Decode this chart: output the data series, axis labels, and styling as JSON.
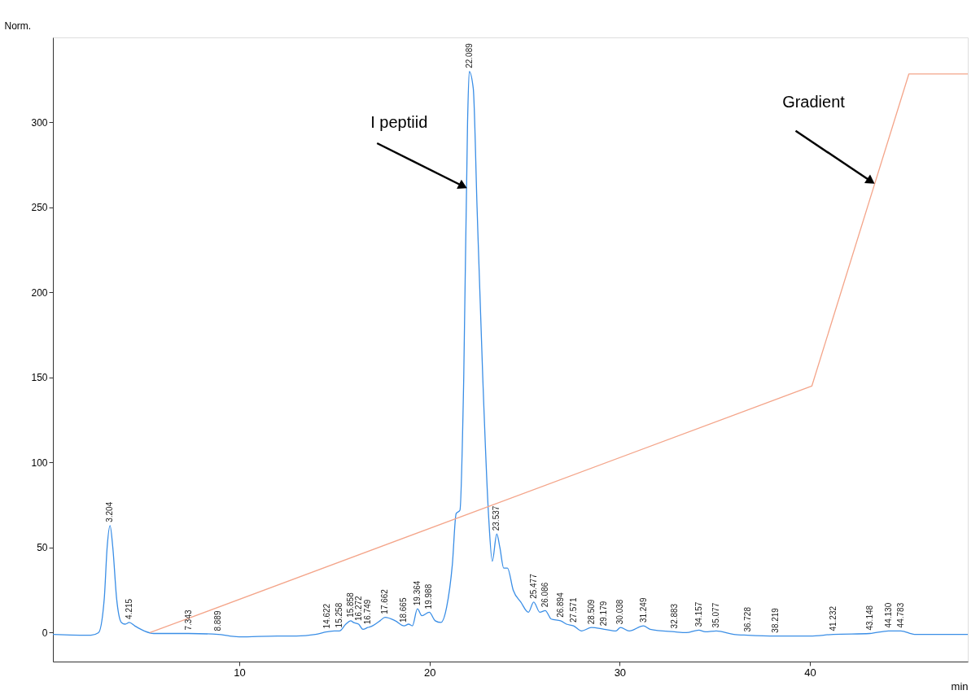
{
  "chart_data": {
    "type": "line",
    "ylabel": "Norm.",
    "xlabel": "min",
    "xlim": [
      0.2,
      48.3
    ],
    "ylim": [
      -17,
      350
    ],
    "xticks": [
      10,
      20,
      30,
      40
    ],
    "yticks": [
      0,
      50,
      100,
      150,
      200,
      250,
      300
    ],
    "series": [
      {
        "color": "#3a8ee6",
        "x": [
          0.2,
          2.2,
          2.6,
          2.9,
          3.05,
          3.204,
          3.35,
          3.55,
          3.8,
          4.0,
          4.215,
          4.5,
          5.0,
          5.5,
          7.343,
          8.889,
          9.5,
          10,
          12,
          13,
          14,
          14.622,
          15.0,
          15.258,
          15.6,
          15.858,
          16.0,
          16.272,
          16.5,
          16.749,
          17.0,
          17.4,
          17.662,
          18.2,
          18.665,
          18.9,
          19.1,
          19.364,
          19.6,
          19.988,
          20.3,
          20.6,
          20.9,
          21.2,
          21.4,
          21.6,
          21.8,
          22.0,
          22.089,
          22.3,
          22.5,
          22.8,
          23.1,
          23.3,
          23.537,
          23.7,
          23.9,
          24.1,
          24.4,
          24.8,
          25.2,
          25.477,
          25.8,
          26.086,
          26.4,
          26.894,
          27.2,
          27.571,
          28.0,
          28.509,
          29.179,
          29.8,
          30.038,
          30.5,
          31.249,
          31.6,
          32.883,
          33.5,
          34.157,
          34.5,
          35.077,
          36,
          36.728,
          38.219,
          40,
          41.232,
          43.148,
          44.13,
          44.783,
          45.5,
          48.3
        ],
        "values": [
          -1,
          -1.5,
          0,
          20,
          50,
          63,
          50,
          20,
          6,
          5,
          6,
          4,
          1,
          -0.5,
          -0.5,
          -1,
          -2,
          -2.5,
          -2,
          -2,
          -1,
          0.5,
          1,
          1,
          5,
          7,
          6,
          5,
          2,
          3,
          4,
          7,
          9,
          7,
          4,
          5,
          4,
          14,
          10,
          12,
          7,
          6,
          15,
          40,
          70,
          72,
          150,
          300,
          330,
          320,
          250,
          150,
          70,
          42,
          58,
          50,
          38,
          38,
          25,
          18,
          12,
          18,
          12,
          13,
          8,
          7,
          5,
          4,
          1,
          3,
          2,
          1,
          3,
          1,
          4,
          2,
          0.5,
          0,
          1.5,
          0.5,
          1,
          -1,
          -1.5,
          -2,
          -2,
          -1,
          -0.5,
          1,
          1,
          -1,
          -1
        ]
      },
      {
        "color": "#f4a58a",
        "x": [
          5.3,
          40.1,
          45.2,
          48.3
        ],
        "values": [
          0,
          145,
          328.5,
          328.5
        ]
      }
    ],
    "annotations": [
      {
        "text": "I peptiid",
        "x": 21.95,
        "y": 261
      },
      {
        "text": "Gradient",
        "x": 43.4,
        "y": 264
      },
      {
        "text": "3.204",
        "x": 3.204,
        "y": 63
      },
      {
        "text": "4.215",
        "x": 4.215,
        "y": 6
      },
      {
        "text": "7.343",
        "x": 7.343,
        "y": -0.5
      },
      {
        "text": "8.889",
        "x": 8.889,
        "y": -1
      },
      {
        "text": "14.622",
        "x": 14.622,
        "y": 0.5
      },
      {
        "text": "15.258",
        "x": 15.258,
        "y": 1
      },
      {
        "text": "15.858",
        "x": 15.858,
        "y": 7
      },
      {
        "text": "16.272",
        "x": 16.272,
        "y": 5
      },
      {
        "text": "16.749",
        "x": 16.749,
        "y": 3
      },
      {
        "text": "17.662",
        "x": 17.662,
        "y": 9
      },
      {
        "text": "18.665",
        "x": 18.665,
        "y": 4
      },
      {
        "text": "19.364",
        "x": 19.364,
        "y": 14
      },
      {
        "text": "19.988",
        "x": 19.988,
        "y": 12
      },
      {
        "text": "22.089",
        "x": 22.089,
        "y": 330
      },
      {
        "text": "23.537",
        "x": 23.537,
        "y": 58
      },
      {
        "text": "25.477",
        "x": 25.477,
        "y": 18
      },
      {
        "text": "26.086",
        "x": 26.086,
        "y": 13
      },
      {
        "text": "26.894",
        "x": 26.894,
        "y": 7
      },
      {
        "text": "27.571",
        "x": 27.571,
        "y": 4
      },
      {
        "text": "28.509",
        "x": 28.509,
        "y": 3
      },
      {
        "text": "29.179",
        "x": 29.179,
        "y": 2
      },
      {
        "text": "30.038",
        "x": 30.038,
        "y": 3
      },
      {
        "text": "31.249",
        "x": 31.249,
        "y": 4
      },
      {
        "text": "32.883",
        "x": 32.883,
        "y": 0.5
      },
      {
        "text": "34.157",
        "x": 34.157,
        "y": 1.5
      },
      {
        "text": "35.077",
        "x": 35.077,
        "y": 1
      },
      {
        "text": "36.728",
        "x": 36.728,
        "y": -1.5
      },
      {
        "text": "38.219",
        "x": 38.219,
        "y": -2
      },
      {
        "text": "41.232",
        "x": 41.232,
        "y": -1
      },
      {
        "text": "43.148",
        "x": 43.148,
        "y": -0.5
      },
      {
        "text": "44.130",
        "x": 44.13,
        "y": 1
      },
      {
        "text": "44.783",
        "x": 44.783,
        "y": 1
      }
    ]
  }
}
